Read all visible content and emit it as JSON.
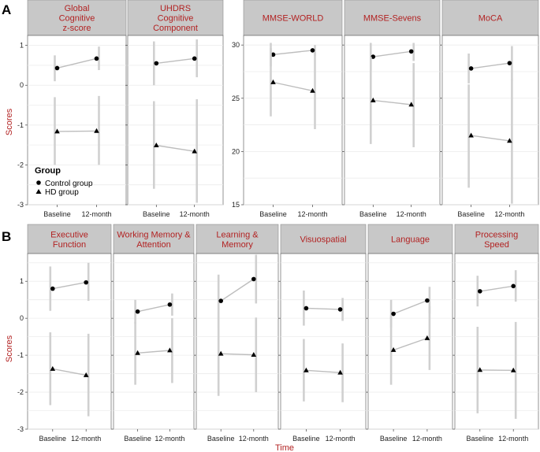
{
  "panel_labels": {
    "top": "A",
    "bottom": "B"
  },
  "legend": {
    "title": "Group",
    "items": [
      "Control group",
      "HD group"
    ]
  },
  "axis_labels": {
    "y_top": "Scores",
    "y_bottom": "Scores",
    "x_bottom": "Time"
  },
  "colors": {
    "strip_fill": "#c8c8c8",
    "strip_text": "#b22222",
    "line": "#bdbdbd",
    "errorbar": "#d0d0d0",
    "grid": "#ececec",
    "point": "#000000"
  },
  "chart_data": [
    {
      "type": "line",
      "title": "Global Cognitive z-score",
      "strip": [
        "Global",
        "Cognitive",
        "z-score"
      ],
      "categories": [
        "Baseline",
        "12-month"
      ],
      "xlabel": "",
      "ylabel": "Scores",
      "ylim": [
        -3,
        1.25
      ],
      "yticks": [
        1,
        0,
        -1,
        -2,
        -3
      ],
      "series": [
        {
          "name": "Control group",
          "marker": "circle",
          "values": [
            0.43,
            0.67
          ],
          "lower": [
            0.1,
            0.38
          ],
          "upper": [
            0.75,
            0.97
          ]
        },
        {
          "name": "HD group",
          "marker": "triangle",
          "values": [
            -1.16,
            -1.15
          ],
          "lower": [
            -2.0,
            -2.0
          ],
          "upper": [
            -0.3,
            -0.27
          ]
        }
      ]
    },
    {
      "type": "line",
      "title": "UHDRS Cognitive Component",
      "strip": [
        "UHDRS",
        "Cognitive",
        "Component"
      ],
      "categories": [
        "Baseline",
        "12-month"
      ],
      "xlabel": "",
      "ylabel": "",
      "ylim": [
        -3,
        1.25
      ],
      "yticks": [
        1,
        0,
        -1,
        -2,
        -3
      ],
      "series": [
        {
          "name": "Control group",
          "marker": "circle",
          "values": [
            0.55,
            0.67
          ],
          "lower": [
            0.0,
            0.2
          ],
          "upper": [
            1.1,
            1.15
          ]
        },
        {
          "name": "HD group",
          "marker": "triangle",
          "values": [
            -1.51,
            -1.66
          ],
          "lower": [
            -2.6,
            -2.95
          ],
          "upper": [
            -0.4,
            -0.35
          ]
        }
      ]
    },
    {
      "type": "line",
      "title": "MMSE-WORLD",
      "strip": [
        "MMSE-WORLD"
      ],
      "categories": [
        "Baseline",
        "12-month"
      ],
      "xlabel": "",
      "ylabel": "",
      "ylim": [
        15,
        30.9
      ],
      "yticks": [
        30,
        25,
        20,
        15
      ],
      "series": [
        {
          "name": "Control group",
          "marker": "circle",
          "values": [
            29.1,
            29.5
          ],
          "lower": [
            28.0,
            29.0
          ],
          "upper": [
            30.2,
            30.0
          ]
        },
        {
          "name": "HD group",
          "marker": "triangle",
          "values": [
            26.5,
            25.7
          ],
          "lower": [
            23.3,
            22.1
          ],
          "upper": [
            29.7,
            29.3
          ]
        }
      ]
    },
    {
      "type": "line",
      "title": "MMSE-Sevens",
      "strip": [
        "MMSE-Sevens"
      ],
      "categories": [
        "Baseline",
        "12-month"
      ],
      "xlabel": "",
      "ylabel": "",
      "ylim": [
        15,
        30.9
      ],
      "yticks": [
        30,
        25,
        20,
        15
      ],
      "series": [
        {
          "name": "Control group",
          "marker": "circle",
          "values": [
            28.9,
            29.4
          ],
          "lower": [
            27.6,
            28.5
          ],
          "upper": [
            30.2,
            30.2
          ]
        },
        {
          "name": "HD group",
          "marker": "triangle",
          "values": [
            24.8,
            24.4
          ],
          "lower": [
            20.7,
            20.4
          ],
          "upper": [
            28.9,
            28.3
          ]
        }
      ]
    },
    {
      "type": "line",
      "title": "MoCA",
      "strip": [
        "MoCA"
      ],
      "categories": [
        "Baseline",
        "12-month"
      ],
      "xlabel": "",
      "ylabel": "",
      "ylim": [
        15,
        30.9
      ],
      "yticks": [
        30,
        25,
        20,
        15
      ],
      "series": [
        {
          "name": "Control group",
          "marker": "circle",
          "values": [
            27.8,
            28.3
          ],
          "lower": [
            26.4,
            26.7
          ],
          "upper": [
            29.2,
            29.9
          ]
        },
        {
          "name": "HD group",
          "marker": "triangle",
          "values": [
            21.5,
            21.0
          ],
          "lower": [
            16.6,
            15.1
          ],
          "upper": [
            26.3,
            26.8
          ]
        }
      ]
    },
    {
      "type": "line",
      "title": "Executive Function",
      "strip": [
        "Executive",
        "Function"
      ],
      "categories": [
        "Baseline",
        "12-month"
      ],
      "xlabel": "",
      "ylabel": "Scores",
      "ylim": [
        -3,
        1.75
      ],
      "yticks": [
        1,
        0,
        -1,
        -2,
        -3
      ],
      "series": [
        {
          "name": "Control group",
          "marker": "circle",
          "values": [
            0.8,
            0.97
          ],
          "lower": [
            0.2,
            0.47
          ],
          "upper": [
            1.4,
            1.5
          ]
        },
        {
          "name": "HD group",
          "marker": "triangle",
          "values": [
            -1.37,
            -1.54
          ],
          "lower": [
            -2.35,
            -2.65
          ],
          "upper": [
            -0.38,
            -0.42
          ]
        }
      ]
    },
    {
      "type": "line",
      "title": "Working Memory & Attention",
      "strip": [
        "Working Memory &",
        "Attention"
      ],
      "categories": [
        "Baseline",
        "12-month"
      ],
      "xlabel": "",
      "ylabel": "",
      "ylim": [
        -3,
        1.75
      ],
      "yticks": [
        1,
        0,
        -1,
        -2,
        -3
      ],
      "series": [
        {
          "name": "Control group",
          "marker": "circle",
          "values": [
            0.18,
            0.37
          ],
          "lower": [
            -0.15,
            0.07
          ],
          "upper": [
            0.5,
            0.67
          ]
        },
        {
          "name": "HD group",
          "marker": "triangle",
          "values": [
            -0.94,
            -0.87
          ],
          "lower": [
            -1.8,
            -1.75
          ],
          "upper": [
            -0.1,
            0.0
          ]
        }
      ]
    },
    {
      "type": "line",
      "title": "Learning & Memory",
      "strip": [
        "Learning &",
        "Memory"
      ],
      "categories": [
        "Baseline",
        "12-month"
      ],
      "xlabel": "",
      "ylabel": "",
      "ylim": [
        -3,
        1.75
      ],
      "yticks": [
        1,
        0,
        -1,
        -2,
        -3
      ],
      "series": [
        {
          "name": "Control group",
          "marker": "circle",
          "values": [
            0.47,
            1.06
          ],
          "lower": [
            -0.25,
            0.4
          ],
          "upper": [
            1.18,
            1.72
          ]
        },
        {
          "name": "HD group",
          "marker": "triangle",
          "values": [
            -0.96,
            -0.99
          ],
          "lower": [
            -2.1,
            -2.0
          ],
          "upper": [
            0.18,
            0.02
          ]
        }
      ]
    },
    {
      "type": "line",
      "title": "Visuospatial",
      "strip": [
        "Visuospatial"
      ],
      "categories": [
        "Baseline",
        "12-month"
      ],
      "xlabel": "",
      "ylabel": "",
      "ylim": [
        -3,
        1.75
      ],
      "yticks": [
        1,
        0,
        -1,
        -2,
        -3
      ],
      "series": [
        {
          "name": "Control group",
          "marker": "circle",
          "values": [
            0.27,
            0.24
          ],
          "lower": [
            -0.2,
            -0.07
          ],
          "upper": [
            0.75,
            0.55
          ]
        },
        {
          "name": "HD group",
          "marker": "triangle",
          "values": [
            -1.41,
            -1.47
          ],
          "lower": [
            -2.25,
            -2.27
          ],
          "upper": [
            -0.56,
            -0.68
          ]
        }
      ]
    },
    {
      "type": "line",
      "title": "Language",
      "strip": [
        "Language"
      ],
      "categories": [
        "Baseline",
        "12-month"
      ],
      "xlabel": "",
      "ylabel": "",
      "ylim": [
        -3,
        1.75
      ],
      "yticks": [
        1,
        0,
        -1,
        -2,
        -3
      ],
      "series": [
        {
          "name": "Control group",
          "marker": "circle",
          "values": [
            0.12,
            0.48
          ],
          "lower": [
            -0.25,
            0.13
          ],
          "upper": [
            0.5,
            0.85
          ]
        },
        {
          "name": "HD group",
          "marker": "triangle",
          "values": [
            -0.86,
            -0.54
          ],
          "lower": [
            -1.8,
            -1.4
          ],
          "upper": [
            0.08,
            0.32
          ]
        }
      ]
    },
    {
      "type": "line",
      "title": "Processing Speed",
      "strip": [
        "Processing",
        "Speed"
      ],
      "categories": [
        "Baseline",
        "12-month"
      ],
      "xlabel": "",
      "ylabel": "",
      "ylim": [
        -3,
        1.75
      ],
      "yticks": [
        1,
        0,
        -1,
        -2,
        -3
      ],
      "series": [
        {
          "name": "Control group",
          "marker": "circle",
          "values": [
            0.73,
            0.87
          ],
          "lower": [
            0.32,
            0.45
          ],
          "upper": [
            1.15,
            1.3
          ]
        },
        {
          "name": "HD group",
          "marker": "triangle",
          "values": [
            -1.4,
            -1.41
          ],
          "lower": [
            -2.57,
            -2.72
          ],
          "upper": [
            -0.23,
            -0.1
          ]
        }
      ]
    }
  ]
}
